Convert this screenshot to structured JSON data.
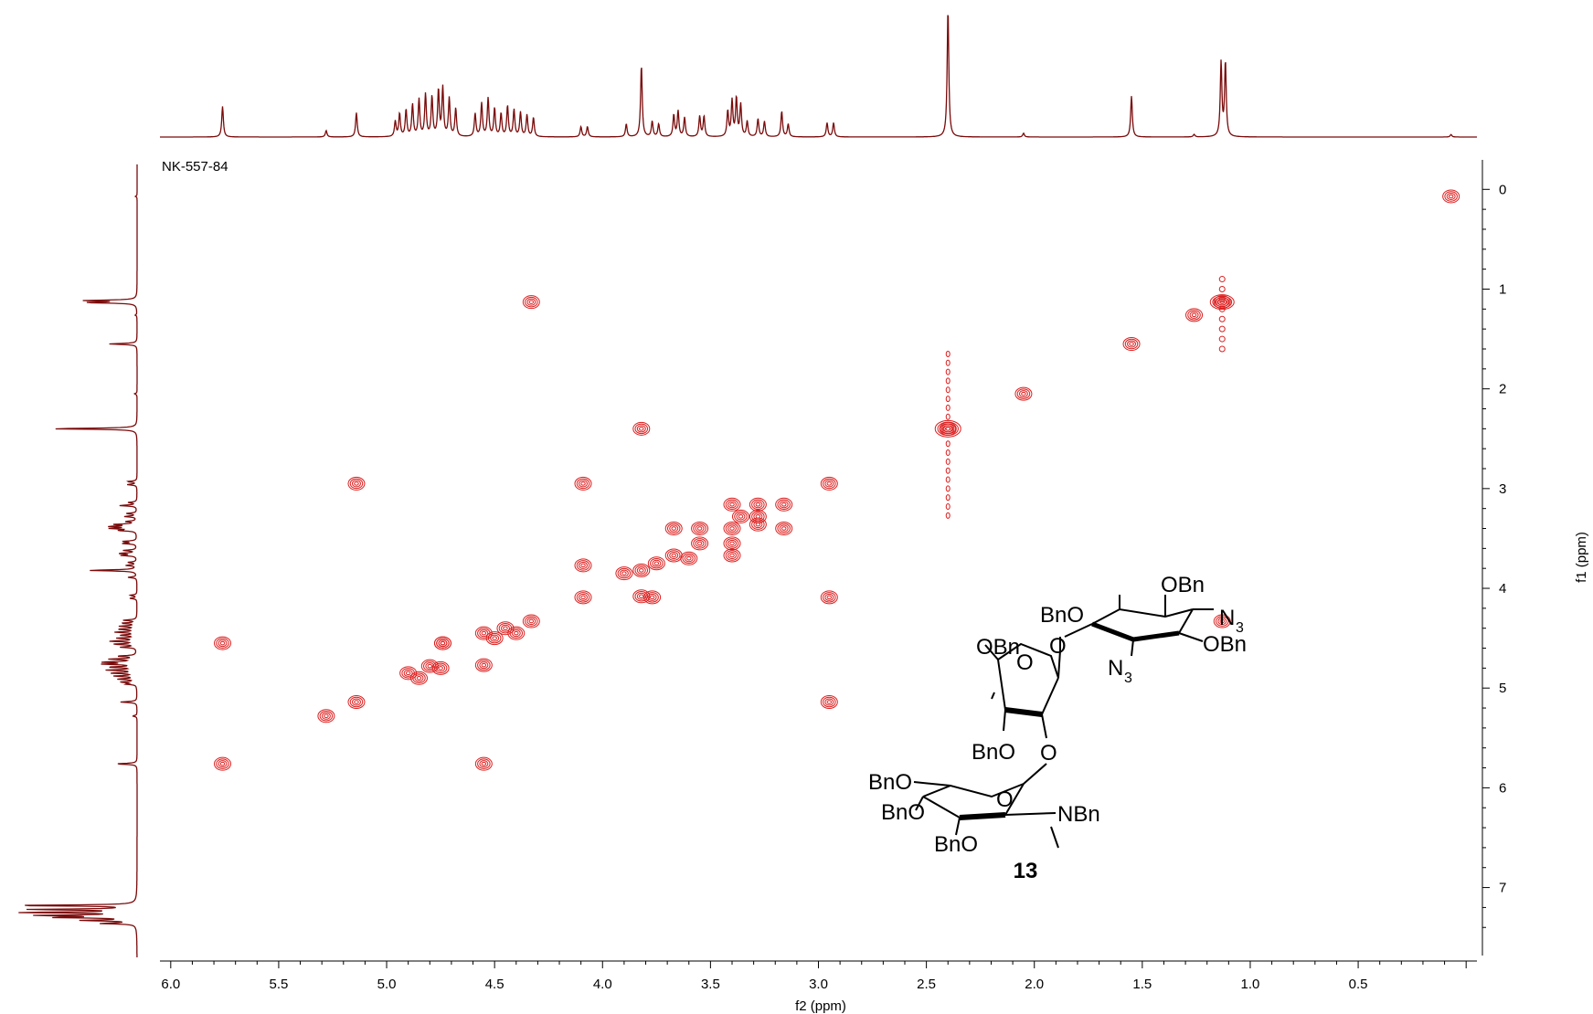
{
  "chart_data": {
    "type": "scatter",
    "subtype": "2D COSY NMR contour plot",
    "sample_label": "NK-557-84",
    "xlabel": "f2 (ppm)",
    "ylabel": "f1 (ppm)",
    "xlim": [
      6.05,
      -0.05
    ],
    "ylim": [
      -0.25,
      7.7
    ],
    "x_ticks": [
      "6.0",
      "5.5",
      "5.0",
      "4.5",
      "4.0",
      "3.5",
      "3.0",
      "2.5",
      "2.0",
      "1.5",
      "1.0",
      "0.5"
    ],
    "y_ticks": [
      "0",
      "1",
      "2",
      "3",
      "4",
      "5",
      "6",
      "7"
    ],
    "color": "#dd1f1f",
    "projection_color": "#7a0a0a",
    "projection_peaks": [
      {
        "ppm": 5.76,
        "h": 0.24
      },
      {
        "ppm": 5.28,
        "h": 0.05
      },
      {
        "ppm": 5.14,
        "h": 0.19
      },
      {
        "ppm": 4.96,
        "h": 0.12
      },
      {
        "ppm": 4.94,
        "h": 0.18
      },
      {
        "ppm": 4.91,
        "h": 0.21
      },
      {
        "ppm": 4.88,
        "h": 0.25
      },
      {
        "ppm": 4.85,
        "h": 0.29
      },
      {
        "ppm": 4.82,
        "h": 0.33
      },
      {
        "ppm": 4.79,
        "h": 0.31
      },
      {
        "ppm": 4.76,
        "h": 0.36
      },
      {
        "ppm": 4.74,
        "h": 0.38
      },
      {
        "ppm": 4.71,
        "h": 0.3
      },
      {
        "ppm": 4.68,
        "h": 0.22
      },
      {
        "ppm": 4.59,
        "h": 0.18
      },
      {
        "ppm": 4.56,
        "h": 0.26
      },
      {
        "ppm": 4.53,
        "h": 0.3
      },
      {
        "ppm": 4.5,
        "h": 0.22
      },
      {
        "ppm": 4.47,
        "h": 0.18
      },
      {
        "ppm": 4.44,
        "h": 0.24
      },
      {
        "ppm": 4.41,
        "h": 0.21
      },
      {
        "ppm": 4.38,
        "h": 0.19
      },
      {
        "ppm": 4.35,
        "h": 0.17
      },
      {
        "ppm": 4.32,
        "h": 0.15
      },
      {
        "ppm": 4.1,
        "h": 0.08
      },
      {
        "ppm": 4.07,
        "h": 0.08
      },
      {
        "ppm": 3.89,
        "h": 0.1
      },
      {
        "ppm": 3.82,
        "h": 0.56
      },
      {
        "ppm": 3.77,
        "h": 0.12
      },
      {
        "ppm": 3.74,
        "h": 0.1
      },
      {
        "ppm": 3.67,
        "h": 0.17
      },
      {
        "ppm": 3.65,
        "h": 0.2
      },
      {
        "ppm": 3.62,
        "h": 0.15
      },
      {
        "ppm": 3.55,
        "h": 0.16
      },
      {
        "ppm": 3.53,
        "h": 0.16
      },
      {
        "ppm": 3.42,
        "h": 0.2
      },
      {
        "ppm": 3.4,
        "h": 0.28
      },
      {
        "ppm": 3.38,
        "h": 0.3
      },
      {
        "ppm": 3.36,
        "h": 0.25
      },
      {
        "ppm": 3.33,
        "h": 0.12
      },
      {
        "ppm": 3.28,
        "h": 0.14
      },
      {
        "ppm": 3.25,
        "h": 0.12
      },
      {
        "ppm": 3.17,
        "h": 0.2
      },
      {
        "ppm": 3.14,
        "h": 0.1
      },
      {
        "ppm": 2.96,
        "h": 0.11
      },
      {
        "ppm": 2.93,
        "h": 0.11
      },
      {
        "ppm": 2.4,
        "h": 1.0
      },
      {
        "ppm": 2.05,
        "h": 0.03
      },
      {
        "ppm": 1.55,
        "h": 0.32
      },
      {
        "ppm": 1.26,
        "h": 0.02
      },
      {
        "ppm": 1.135,
        "h": 0.58
      },
      {
        "ppm": 1.115,
        "h": 0.58
      },
      {
        "ppm": 0.07,
        "h": 0.02
      }
    ],
    "diagonal_peaks": [
      {
        "x": 5.76,
        "y": 5.76
      },
      {
        "x": 5.28,
        "y": 5.28
      },
      {
        "x": 5.14,
        "y": 5.14
      },
      {
        "x": 4.9,
        "y": 4.85
      },
      {
        "x": 4.85,
        "y": 4.9
      },
      {
        "x": 4.8,
        "y": 4.78
      },
      {
        "x": 4.75,
        "y": 4.8
      },
      {
        "x": 4.74,
        "y": 4.55
      },
      {
        "x": 4.55,
        "y": 4.45
      },
      {
        "x": 4.5,
        "y": 4.5
      },
      {
        "x": 4.45,
        "y": 4.4
      },
      {
        "x": 4.4,
        "y": 4.45
      },
      {
        "x": 4.33,
        "y": 4.33
      },
      {
        "x": 4.09,
        "y": 4.09
      },
      {
        "x": 3.9,
        "y": 3.85
      },
      {
        "x": 3.82,
        "y": 3.82
      },
      {
        "x": 3.75,
        "y": 3.75
      },
      {
        "x": 3.67,
        "y": 3.67
      },
      {
        "x": 3.55,
        "y": 3.55
      },
      {
        "x": 3.4,
        "y": 3.4
      },
      {
        "x": 3.28,
        "y": 3.28
      },
      {
        "x": 3.16,
        "y": 3.16
      },
      {
        "x": 2.95,
        "y": 2.95
      },
      {
        "x": 2.4,
        "y": 2.4
      },
      {
        "x": 2.05,
        "y": 2.05
      },
      {
        "x": 1.55,
        "y": 1.55
      },
      {
        "x": 1.26,
        "y": 1.26
      },
      {
        "x": 1.13,
        "y": 1.13
      },
      {
        "x": 0.07,
        "y": 0.07
      }
    ],
    "cross_peaks": [
      {
        "x": 4.33,
        "y": 1.13
      },
      {
        "x": 1.13,
        "y": 4.33
      },
      {
        "x": 5.76,
        "y": 4.55
      },
      {
        "x": 4.55,
        "y": 5.76
      },
      {
        "x": 5.14,
        "y": 2.95
      },
      {
        "x": 2.95,
        "y": 5.14
      },
      {
        "x": 4.09,
        "y": 2.95
      },
      {
        "x": 2.95,
        "y": 4.09
      },
      {
        "x": 4.09,
        "y": 3.77
      },
      {
        "x": 3.77,
        "y": 4.09
      },
      {
        "x": 4.55,
        "y": 4.77
      },
      {
        "x": 4.74,
        "y": 4.55
      },
      {
        "x": 3.82,
        "y": 2.4
      },
      {
        "x": 3.82,
        "y": 4.08
      },
      {
        "x": 3.67,
        "y": 3.4
      },
      {
        "x": 3.4,
        "y": 3.67
      },
      {
        "x": 3.55,
        "y": 3.4
      },
      {
        "x": 3.4,
        "y": 3.55
      },
      {
        "x": 3.4,
        "y": 3.16
      },
      {
        "x": 3.16,
        "y": 3.4
      },
      {
        "x": 3.28,
        "y": 3.36
      },
      {
        "x": 3.36,
        "y": 3.28
      },
      {
        "x": 3.28,
        "y": 3.16
      },
      {
        "x": 3.6,
        "y": 3.7
      }
    ],
    "compound_number": "13",
    "structure_labels": [
      "OBn",
      "BnO",
      "N",
      "3",
      "OBn",
      "O",
      "N",
      "3",
      "OBn",
      "O",
      "BnO",
      "O",
      "BnO",
      "O",
      "BnO",
      "NBn",
      "BnO",
      "O"
    ]
  }
}
